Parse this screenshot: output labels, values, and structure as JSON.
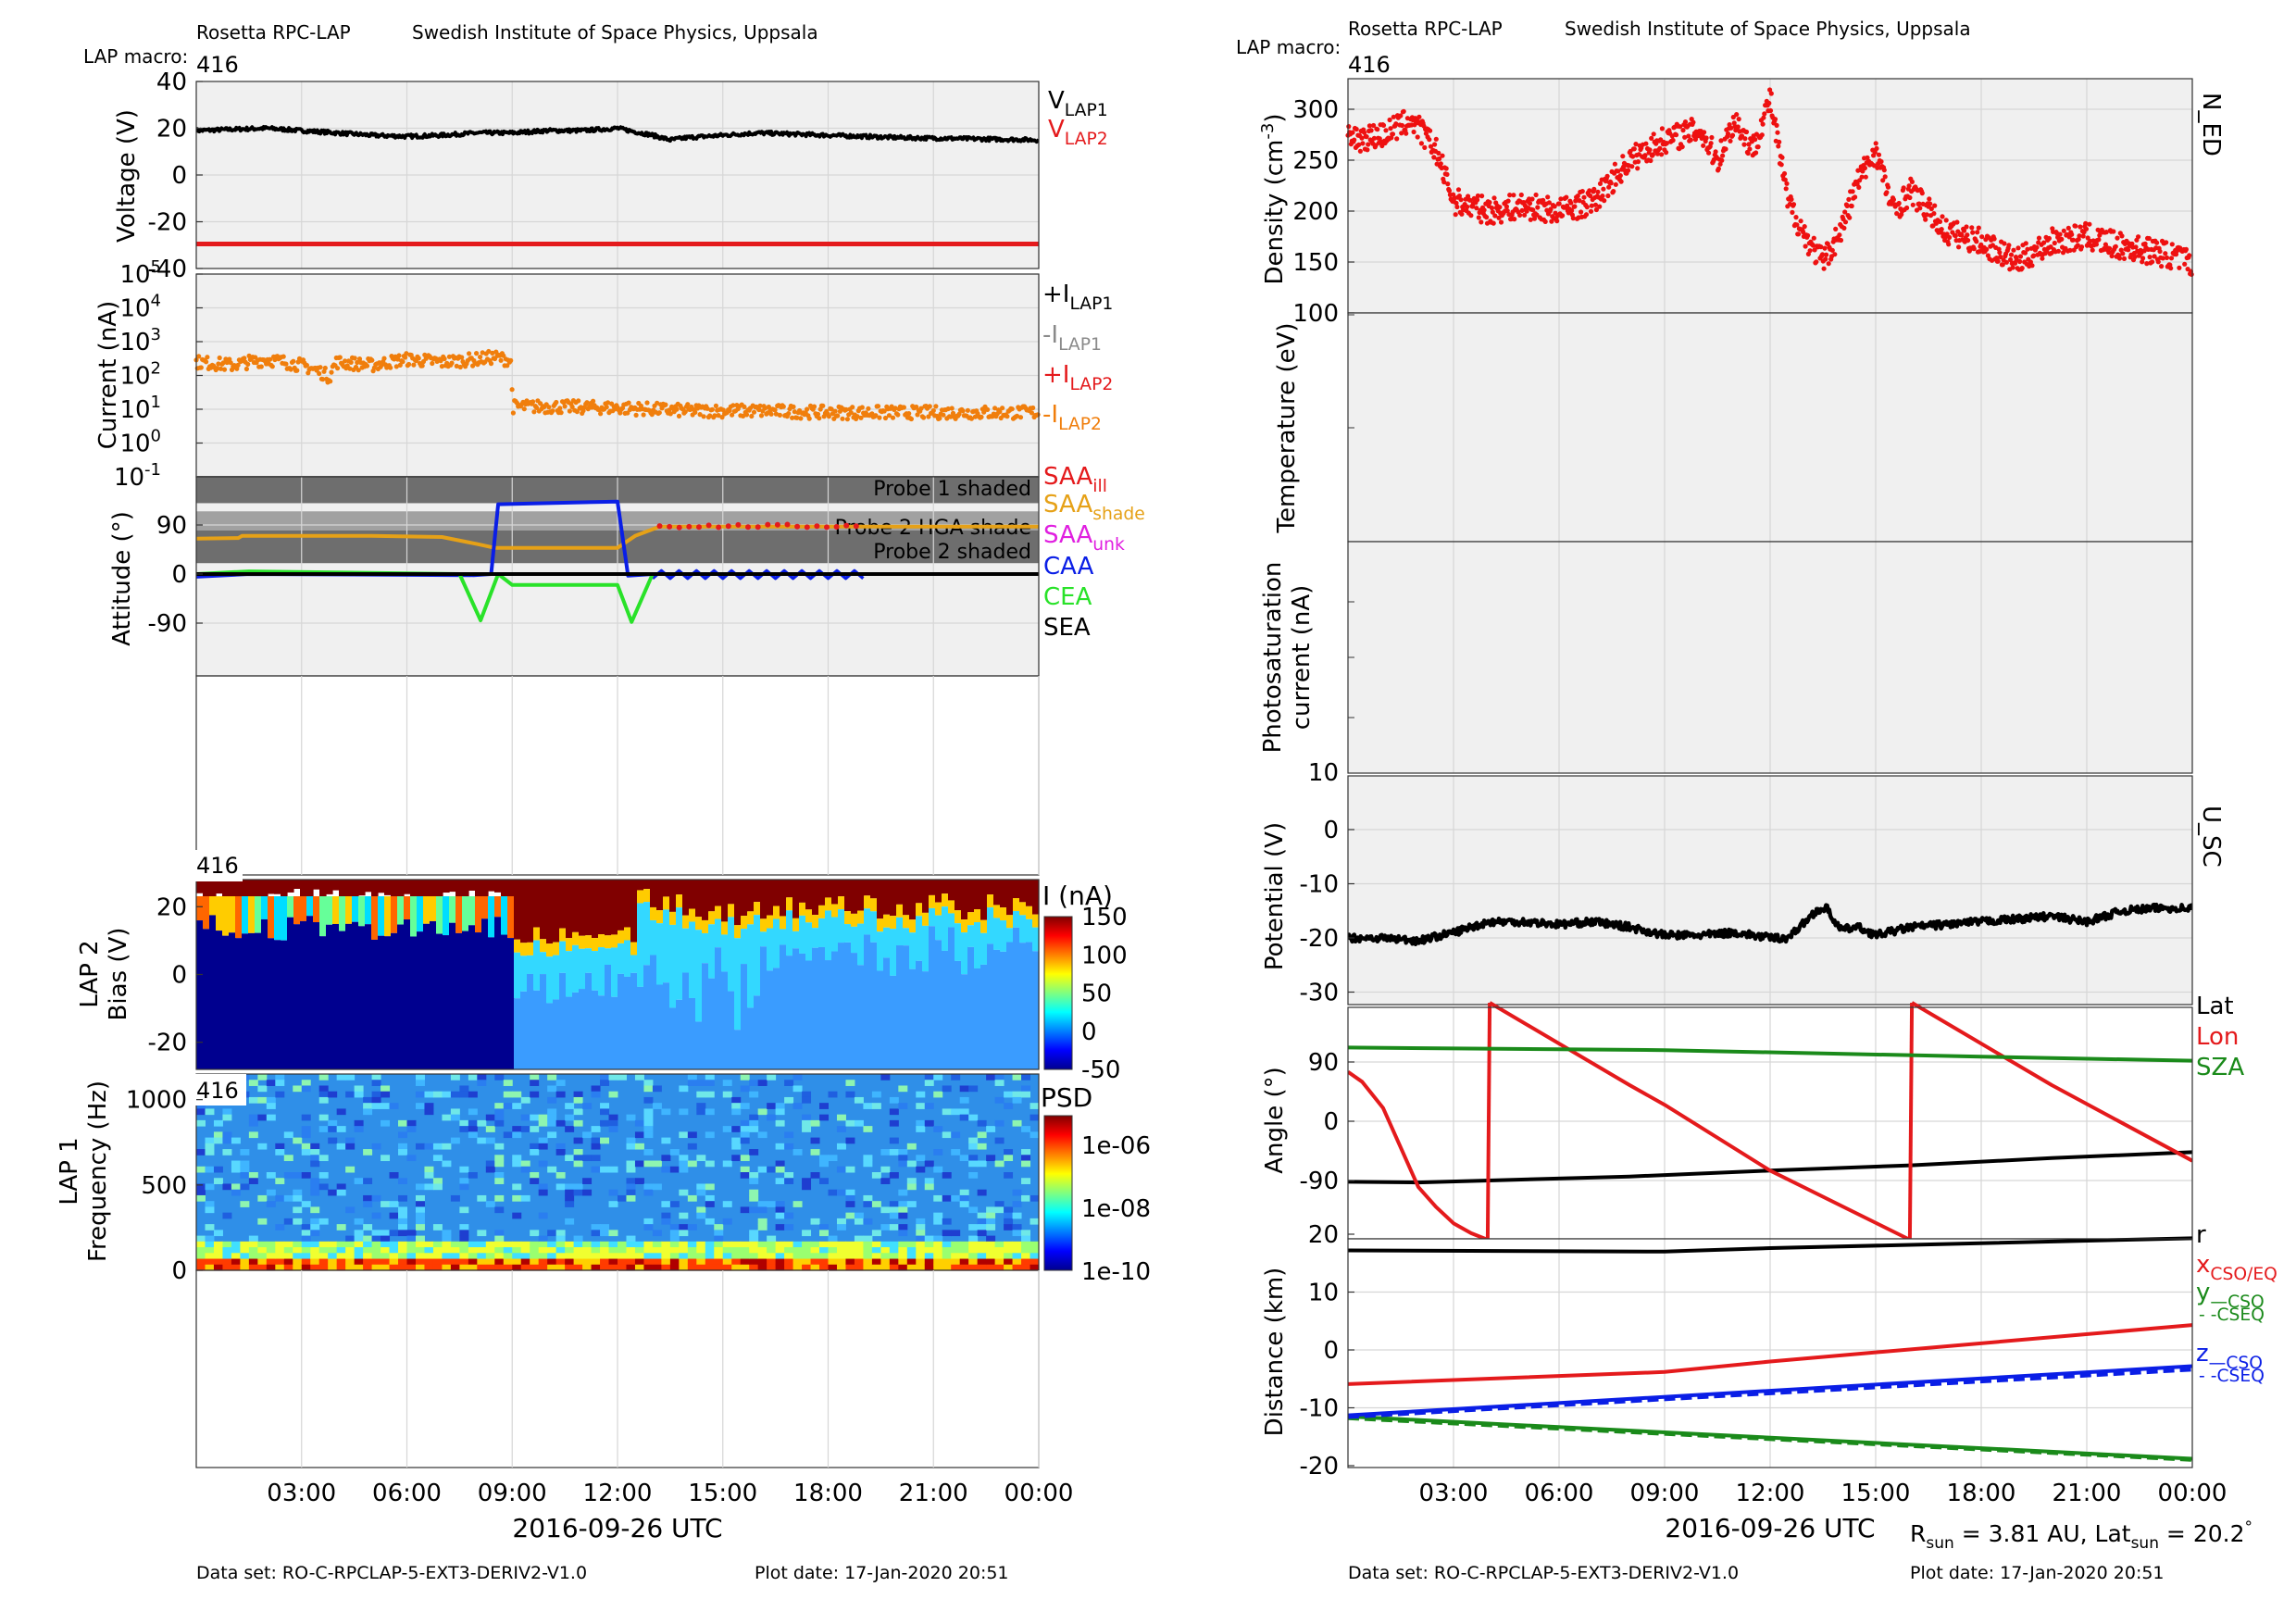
{
  "header": {
    "instrument": "Rosetta RPC-LAP",
    "institute": "Swedish Institute of Space Physics, Uppsala",
    "macro_label": "LAP macro:",
    "macro_value": "416"
  },
  "footer": {
    "dataset": "Data set: RO-C-RPCLAP-5-EXT3-DERIV2-V1.0",
    "plot_date": "Plot date: 17-Jan-2020 20:51"
  },
  "x_axis": {
    "label": "2016-09-26 UTC",
    "ticks": [
      "03:00",
      "06:00",
      "09:00",
      "12:00",
      "15:00",
      "18:00",
      "21:00",
      "00:00"
    ],
    "range_hours": [
      0,
      24
    ]
  },
  "sun_info": {
    "r_label": "R",
    "r_sub": "sun",
    "r_value": " = 3.81 AU, Lat",
    "lat_sub": "sun",
    "lat_value": " = 20.2",
    "degree": "°"
  },
  "chart_data": [
    {
      "id": "voltage",
      "type": "line",
      "ylabel": "Voltage (V)",
      "ylim": [
        -40,
        40
      ],
      "yticks": [
        "40",
        "20",
        "0",
        "-20",
        "-40"
      ],
      "grid": true,
      "legend": [
        {
          "base": "V",
          "sub": "LAP1",
          "color": "#000000"
        },
        {
          "base": "V",
          "sub": "LAP2",
          "color": "#e41a1c"
        }
      ],
      "series": [
        {
          "name": "VLAP1",
          "color": "#000000",
          "x": [
            0,
            2,
            3,
            4,
            5,
            6,
            7,
            8,
            9,
            10,
            11,
            12,
            13,
            13.5,
            14,
            15,
            16,
            18,
            20,
            22,
            24
          ],
          "y": [
            19,
            20,
            19,
            18,
            17,
            16.5,
            17,
            18,
            18,
            19,
            19,
            20,
            17,
            15,
            16,
            17,
            18,
            17,
            16,
            15.5,
            15
          ]
        },
        {
          "name": "VLAP2",
          "color": "#e41a1c",
          "x": [
            0,
            24
          ],
          "y": [
            -29.5,
            -29.5
          ]
        }
      ]
    },
    {
      "id": "current",
      "type": "scatter",
      "ylabel": "Current (nA)",
      "yscale": "log",
      "ylim_exp": [
        -1,
        5
      ],
      "ytick_exps": [
        "-1",
        "0",
        "1",
        "2",
        "3",
        "4",
        "5"
      ],
      "ytick_base": "10",
      "grid": true,
      "legend": [
        {
          "base": "+I",
          "sub": "LAP1",
          "color": "#000000"
        },
        {
          "base": "-I",
          "sub": "LAP1",
          "color": "#8a8a8a"
        },
        {
          "base": "+I",
          "sub": "LAP2",
          "color": "#e41a1c"
        },
        {
          "base": "-I",
          "sub": "LAP2",
          "color": "#f07e0c"
        }
      ],
      "series": [
        {
          "name": "-ILAP2",
          "color": "#f07e0c",
          "x": [
            0,
            1,
            2,
            3,
            3.8,
            4,
            5,
            6,
            7,
            8,
            8.5,
            8.95,
            9.0,
            10,
            12,
            13,
            14,
            15,
            16,
            18,
            20,
            22,
            24
          ],
          "y": [
            250,
            200,
            300,
            200,
            90,
            250,
            200,
            300,
            250,
            300,
            350,
            280,
            12,
            12,
            11,
            10,
            9,
            9,
            9,
            8,
            8,
            8,
            8
          ]
        }
      ]
    },
    {
      "id": "attitude",
      "type": "line",
      "ylabel": "Attitude (°)",
      "ylim": [
        -180,
        180
      ],
      "yticks": [
        "90",
        "0",
        "-90"
      ],
      "grid": true,
      "bands": [
        {
          "label": "Probe 1 shaded",
          "range": [
            130,
            180
          ],
          "color": "#666666"
        },
        {
          "label": "Probe 2 HGA shade",
          "range": [
            80,
            115
          ],
          "color": "#9c9c9c"
        },
        {
          "label": "Probe 2 shaded",
          "range": [
            20,
            80
          ],
          "color": "#666666"
        }
      ],
      "legend": [
        {
          "base": "SAA",
          "sub": "ill",
          "color": "#e41a1c"
        },
        {
          "base": "SAA",
          "sub": "shade",
          "color": "#e6a117"
        },
        {
          "base": "SAA",
          "sub": "unk",
          "color": "#e01fe0"
        },
        {
          "base": "CAA",
          "sub": "",
          "color": "#0a1ee6"
        },
        {
          "base": "CEA",
          "sub": "",
          "color": "#29e229"
        },
        {
          "base": "SEA",
          "sub": "",
          "color": "#000000"
        }
      ],
      "series": [
        {
          "name": "SAAshade",
          "color": "#e6a117",
          "x": [
            0,
            1.2,
            1.3,
            5,
            7,
            8,
            8.5,
            12,
            12.5,
            13.2,
            24
          ],
          "y": [
            65,
            66,
            70,
            70,
            68,
            55,
            48,
            48,
            70,
            87,
            87
          ]
        },
        {
          "name": "SAAill",
          "color": "#e41a1c",
          "x": [
            13.2,
            19
          ],
          "y": [
            88,
            88
          ]
        },
        {
          "name": "CAA",
          "color": "#0a1ee6",
          "x": [
            0,
            1.5,
            7.9,
            8.4,
            8.6,
            12.0,
            12.3,
            12.5,
            13,
            19
          ],
          "y": [
            -5,
            0,
            -2,
            0,
            128,
            133,
            -3,
            -2,
            0,
            0
          ]
        },
        {
          "name": "CEA",
          "color": "#29e229",
          "x": [
            0,
            1.5,
            7.5,
            8.1,
            8.6,
            9,
            12,
            12.4,
            13,
            24
          ],
          "y": [
            0,
            5,
            0,
            -85,
            0,
            -20,
            -20,
            -88,
            0,
            0
          ]
        },
        {
          "name": "SEA",
          "color": "#000000",
          "x": [
            0,
            24
          ],
          "y": [
            0,
            0
          ]
        }
      ]
    },
    {
      "id": "lap2_spectrogram",
      "type": "heatmap",
      "title": "416",
      "ylabel": "LAP 2\nBias (V)",
      "ylim": [
        -28,
        28
      ],
      "yticks": [
        "20",
        "0",
        "-20"
      ],
      "colorbar_label": "I (nA)",
      "colorbar_range": [
        -50,
        150
      ],
      "colorbar_ticks": [
        "150",
        "100",
        "50",
        "0",
        "-50"
      ]
    },
    {
      "id": "lap1_psd",
      "type": "heatmap",
      "title": "416",
      "ylabel": "LAP 1\nFrequency (Hz)",
      "ylim": [
        0,
        1150
      ],
      "yticks": [
        "1000",
        "500",
        "0"
      ],
      "colorbar_label": "PSD",
      "colorbar_ticks": [
        "1e-06",
        "1e-08",
        "1e-10"
      ]
    },
    {
      "id": "density",
      "type": "scatter",
      "ylabel": "Density (cm",
      "ylabel_sup": "-3",
      "ylabel_end": ")",
      "side_label": "N_ED",
      "ylim": [
        100,
        330
      ],
      "yticks": [
        "300",
        "250",
        "200",
        "150",
        "100"
      ],
      "grid": true,
      "series": [
        {
          "name": "N_ED",
          "color": "#ee1111",
          "x": [
            0,
            1,
            1.8,
            2.5,
            3,
            4,
            5,
            6,
            7,
            8,
            9,
            10,
            10.5,
            11,
            11.5,
            12,
            12.5,
            13,
            13.5,
            14,
            14.5,
            15,
            15.5,
            16,
            16.5,
            17,
            18,
            19,
            20,
            21,
            22,
            23,
            24
          ],
          "y": [
            270,
            275,
            290,
            260,
            210,
            200,
            205,
            200,
            210,
            250,
            270,
            280,
            250,
            290,
            260,
            310,
            210,
            175,
            150,
            180,
            230,
            260,
            200,
            220,
            200,
            180,
            170,
            150,
            170,
            175,
            165,
            160,
            150
          ]
        }
      ]
    },
    {
      "id": "temperature",
      "type": "line",
      "ylabel": "Temperature (eV)",
      "grid": true,
      "series": []
    },
    {
      "id": "photosaturation",
      "type": "line",
      "ylabel": "Photosaturation\ncurrent (nA)",
      "yticks": [
        "10"
      ],
      "grid": true,
      "series": []
    },
    {
      "id": "potential",
      "type": "line",
      "ylabel": "Potential (V)",
      "side_label": "U_SC",
      "ylim": [
        -32,
        10
      ],
      "yticks": [
        "0",
        "-10",
        "-20",
        "-30"
      ],
      "grid": true,
      "series": [
        {
          "name": "U_SC",
          "color": "#000000",
          "x": [
            0,
            1,
            2,
            3,
            3.5,
            4,
            5,
            6,
            7,
            8,
            9,
            10,
            11,
            12,
            12.5,
            13,
            13.3,
            13.6,
            14,
            14.5,
            15,
            16,
            17,
            18,
            19,
            20,
            21,
            22,
            23,
            24
          ],
          "y": [
            -20,
            -20,
            -20.5,
            -19,
            -18,
            -17,
            -17,
            -17.5,
            -17,
            -18,
            -19.5,
            -19.5,
            -19,
            -20,
            -20,
            -17,
            -15,
            -14.5,
            -18.5,
            -18,
            -19.5,
            -18,
            -17.5,
            -17,
            -16.5,
            -16,
            -17,
            -15,
            -14.5,
            -14.5
          ]
        }
      ]
    },
    {
      "id": "angle",
      "type": "line",
      "ylabel": "Angle (°)",
      "ylim": [
        -200,
        200
      ],
      "yticks": [
        "90",
        "0",
        "-90"
      ],
      "legend": [
        {
          "base": "Lat",
          "sub": "",
          "color": "#000000"
        },
        {
          "base": "Lon",
          "sub": "",
          "color": "#e41a1c"
        },
        {
          "base": "SZA",
          "sub": "",
          "color": "#1a8a1a"
        }
      ],
      "series": [
        {
          "name": "Lat",
          "color": "#000000",
          "x": [
            0,
            2,
            4,
            8,
            12,
            16,
            20,
            24
          ],
          "y": [
            -92,
            -93,
            -90,
            -84,
            -75,
            -67,
            -56,
            -47
          ]
        },
        {
          "name": "Lon",
          "color": "#e41a1c",
          "x": [
            0,
            0.4,
            1,
            1.5,
            2,
            2.5,
            3,
            3.5,
            3.97,
            4.03,
            8,
            9,
            12,
            15.97,
            16.03,
            20,
            24
          ],
          "y": [
            75,
            60,
            20,
            -40,
            -100,
            -130,
            -155,
            -170,
            -180,
            180,
            55,
            25,
            -75,
            -180,
            180,
            55,
            -60
          ]
        },
        {
          "name": "SZA",
          "color": "#1a8a1a",
          "x": [
            0,
            9,
            18,
            24
          ],
          "y": [
            112,
            108,
            98,
            92
          ]
        }
      ]
    },
    {
      "id": "distance",
      "type": "line",
      "ylabel": "Distance (km)",
      "ylim": [
        -20,
        20
      ],
      "yticks": [
        "20",
        "10",
        "0",
        "-10",
        "-20"
      ],
      "legend": [
        {
          "base": "r",
          "sub": "",
          "color": "#000000"
        },
        {
          "base": "x",
          "sub": "CSO/EQ",
          "color": "#e41a1c"
        },
        {
          "base": "y",
          "sub": "—CSO",
          "color": "#1a8a1a"
        },
        {
          "base": "",
          "sub": "- -CSEQ",
          "color": "#1a8a1a"
        },
        {
          "base": "z",
          "sub": "—CSO",
          "color": "#0a1ee6"
        },
        {
          "base": "",
          "sub": "- -CSEQ",
          "color": "#0a1ee6"
        }
      ],
      "series": [
        {
          "name": "r",
          "color": "#000000",
          "x": [
            0,
            9,
            12,
            24
          ],
          "y": [
            17.2,
            17.0,
            17.6,
            19.3
          ]
        },
        {
          "name": "x CSO/EQ",
          "color": "#e41a1c",
          "x": [
            0,
            9,
            12,
            24
          ],
          "y": [
            -5.9,
            -3.8,
            -2.0,
            4.3
          ]
        },
        {
          "name": "y CSO",
          "color": "#1a8a1a",
          "x": [
            0,
            24
          ],
          "y": [
            -11.5,
            -18.8
          ]
        },
        {
          "name": "y CSEQ",
          "color": "#1a8a1a",
          "dashed": true,
          "x": [
            0,
            24
          ],
          "y": [
            -11.8,
            -19.0
          ]
        },
        {
          "name": "z CSO",
          "color": "#0a1ee6",
          "x": [
            0,
            24
          ],
          "y": [
            -11.3,
            -2.8
          ]
        },
        {
          "name": "z CSEQ",
          "color": "#0a1ee6",
          "dashed": true,
          "x": [
            0,
            24
          ],
          "y": [
            -11.6,
            -3.4
          ]
        }
      ]
    }
  ]
}
